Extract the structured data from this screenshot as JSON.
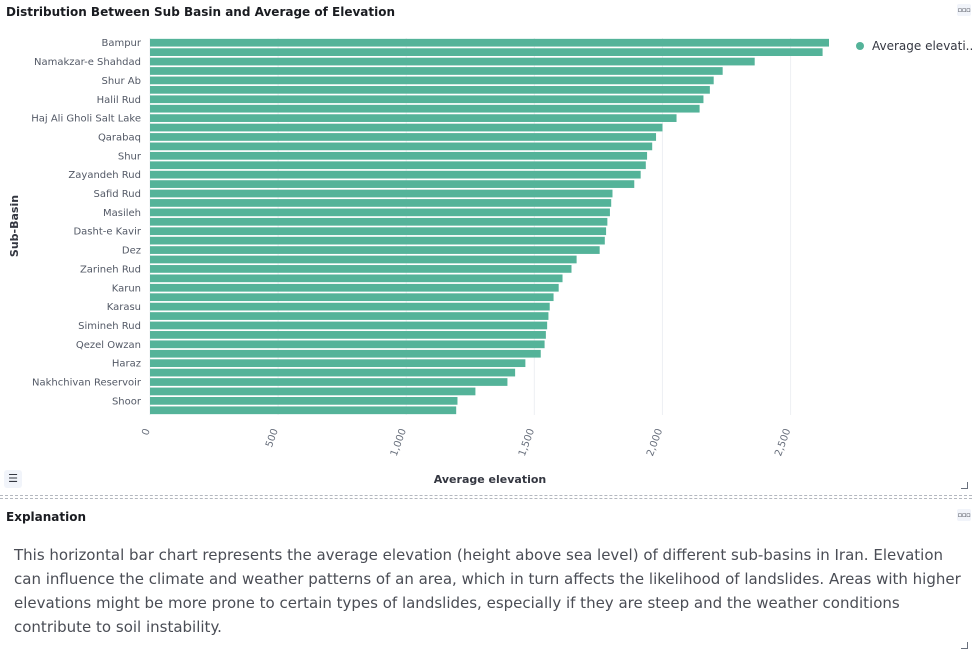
{
  "chart_panel": {
    "title": "Distribution Between Sub Basin and Average of Elevation",
    "menu_icon": "more-dots-icon",
    "legend_toggle_icon": "list-icon"
  },
  "explanation_panel": {
    "title": "Explanation",
    "menu_icon": "more-dots-icon",
    "text": "This horizontal bar chart represents the average elevation (height above sea level) of different sub-basins in Iran. Elevation can influence the climate and weather patterns of an area, which in turn affects the likelihood of landslides. Areas with higher elevations might be more prone to certain types of landslides, especially if they are steep and the weather conditions contribute to soil instability."
  },
  "colors": {
    "bar": "#54b399",
    "grid": "#eef0f3",
    "text": "#343741"
  },
  "chart_data": {
    "type": "bar",
    "orientation": "horizontal",
    "xlabel": "Average elevation",
    "ylabel": "Sub-Basin",
    "xlim": [
      0,
      2650
    ],
    "x_ticks": [
      0,
      500,
      1000,
      1500,
      2000,
      2500
    ],
    "x_tick_labels": [
      "0",
      "500",
      "1,000",
      "1,500",
      "2,000",
      "2,500"
    ],
    "legend": {
      "position": "top-right",
      "entries": [
        "Average elevati..."
      ]
    },
    "categories": [
      "Bampur",
      "",
      "Namakzar-e Shahdad",
      "",
      "Shur Ab",
      "",
      "Halil Rud",
      "",
      "Haj Ali Gholi Salt Lake",
      "",
      "Qarabaq",
      "",
      "Shur",
      "",
      "Zayandeh Rud",
      "",
      "Safid Rud",
      "",
      "Masileh",
      "",
      "Dasht-e Kavir",
      "",
      "Dez",
      "",
      "Zarineh Rud",
      "",
      "Karun",
      "",
      "Karasu",
      "",
      "Simineh Rud",
      "",
      "Qezel Owzan",
      "",
      "Haraz",
      "",
      "Nakhchivan Reservoir",
      "",
      "Shoor",
      ""
    ],
    "series": [
      {
        "name": "Average elevation",
        "values": [
          2650,
          2625,
          2360,
          2235,
          2200,
          2185,
          2160,
          2145,
          2055,
          2000,
          1975,
          1960,
          1940,
          1935,
          1915,
          1890,
          1805,
          1800,
          1795,
          1785,
          1780,
          1775,
          1755,
          1665,
          1645,
          1610,
          1595,
          1575,
          1560,
          1555,
          1550,
          1545,
          1540,
          1525,
          1465,
          1425,
          1395,
          1270,
          1200,
          1195
        ]
      }
    ]
  }
}
